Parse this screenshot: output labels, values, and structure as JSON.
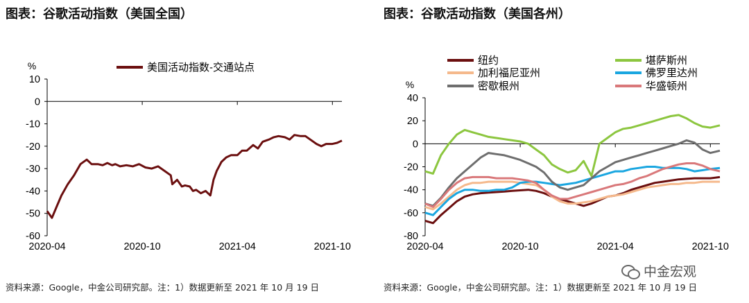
{
  "titles": {
    "left": "图表：谷歌活动指数（美国全国）",
    "right": "图表：谷歌活动指数（美国各州）"
  },
  "source": {
    "left": "资料来源：Google，中金公司研究部。注：1）数据更新至 2021 年 10 月 19 日",
    "right": "资料来源：Google，中金公司研究部。注：1）数据更新至 2021 年 10 月 19 日"
  },
  "watermark": {
    "text": "中金宏观",
    "icon": "wechat-icon"
  },
  "chart_data": [
    {
      "type": "line",
      "title": "",
      "ylabel": "%",
      "xlabel": "",
      "ylim": [
        -60,
        10
      ],
      "yticks": [
        10,
        0,
        -10,
        -20,
        -30,
        -40,
        -50,
        -60
      ],
      "xlim": [
        0,
        18.6
      ],
      "xticks": [
        {
          "pos": 0,
          "label": "2020-04"
        },
        {
          "pos": 6,
          "label": "2020-10"
        },
        {
          "pos": 12,
          "label": "2021-04"
        },
        {
          "pos": 18,
          "label": "2021-10"
        }
      ],
      "legend_position": "top",
      "series": [
        {
          "name": "美国活动指数-交通站点",
          "color": "#6b0f0f",
          "x": [
            0,
            0.3,
            0.6,
            0.9,
            1.3,
            1.7,
            2.1,
            2.5,
            2.8,
            3.2,
            3.5,
            3.8,
            4.1,
            4.3,
            4.6,
            5,
            5.4,
            5.8,
            6.2,
            6.6,
            7,
            7.4,
            7.8,
            7.9,
            8.2,
            8.5,
            8.7,
            9,
            9.2,
            9.4,
            9.7,
            10,
            10.3,
            10.5,
            10.7,
            11,
            11.3,
            11.6,
            12,
            12.3,
            12.6,
            13,
            13.3,
            13.6,
            14,
            14.3,
            14.6,
            15,
            15.3,
            15.6,
            16,
            16.3,
            16.6,
            17,
            17.3,
            17.6,
            18,
            18.3,
            18.6
          ],
          "y": [
            -49,
            -52,
            -47,
            -42,
            -37,
            -33,
            -28,
            -26,
            -28,
            -28,
            -28.5,
            -27.5,
            -28.5,
            -28,
            -29,
            -28.5,
            -29,
            -28,
            -29.5,
            -30,
            -29,
            -31,
            -33,
            -37,
            -35,
            -38,
            -37.5,
            -38,
            -40,
            -39.5,
            -41,
            -40,
            -42,
            -35,
            -31,
            -27,
            -25,
            -24,
            -24,
            -22,
            -22,
            -19.5,
            -21,
            -18,
            -17,
            -16,
            -15.5,
            -16,
            -17,
            -15,
            -15.5,
            -15.5,
            -17,
            -19,
            -20,
            -19,
            -19,
            -18.5,
            -17.5
          ]
        }
      ]
    },
    {
      "type": "line",
      "title": "",
      "ylabel": "%",
      "xlabel": "",
      "ylim": [
        -80,
        40
      ],
      "yticks": [
        40,
        20,
        0,
        -20,
        -40,
        -60,
        -80
      ],
      "xlim": [
        0,
        18.6
      ],
      "xticks": [
        {
          "pos": 0,
          "label": "2020-04"
        },
        {
          "pos": 6,
          "label": "2020-10"
        },
        {
          "pos": 12,
          "label": "2021-04"
        },
        {
          "pos": 18,
          "label": "2021-10"
        }
      ],
      "legend_position": "top",
      "series": [
        {
          "name": "纽约",
          "color": "#6b0f0f",
          "x": [
            0,
            0.5,
            1,
            1.5,
            2,
            2.5,
            3,
            3.5,
            4,
            4.5,
            5,
            5.5,
            6,
            6.5,
            7,
            7.5,
            8,
            8.5,
            9,
            9.5,
            10,
            10.5,
            11,
            11.5,
            12,
            12.5,
            13,
            13.5,
            14,
            14.5,
            15,
            15.5,
            16,
            16.5,
            17,
            17.5,
            18,
            18.6
          ],
          "y": [
            -67,
            -69,
            -62,
            -56,
            -50,
            -46,
            -44,
            -43,
            -42.5,
            -42,
            -41.5,
            -41,
            -40.5,
            -40,
            -41,
            -43,
            -46,
            -48,
            -50,
            -52,
            -54,
            -52,
            -49,
            -46,
            -45,
            -43,
            -40,
            -38,
            -36,
            -34,
            -33,
            -32,
            -31,
            -30.5,
            -30,
            -30,
            -30,
            -29
          ]
        },
        {
          "name": "堪萨斯州",
          "color": "#8cc63f",
          "x": [
            0,
            0.5,
            1,
            1.5,
            2,
            2.5,
            3,
            3.5,
            4,
            4.5,
            5,
            5.5,
            6,
            6.5,
            7,
            7.5,
            8,
            8.5,
            9,
            9.5,
            10,
            10.5,
            11,
            11.5,
            12,
            12.5,
            13,
            13.5,
            14,
            14.5,
            15,
            15.5,
            16,
            16.5,
            17,
            17.5,
            18,
            18.6
          ],
          "y": [
            -24,
            -26,
            -10,
            0,
            8,
            12,
            10,
            8,
            6,
            5,
            4,
            3,
            2,
            0,
            -5,
            -10,
            -18,
            -22,
            -25,
            -23,
            -15,
            -28,
            0,
            5,
            10,
            13,
            14,
            16,
            18,
            20,
            22,
            24,
            25,
            22,
            18,
            15,
            14,
            16
          ]
        },
        {
          "name": "加利福尼亚州",
          "color": "#f5b98c",
          "x": [
            0,
            0.5,
            1,
            1.5,
            2,
            2.5,
            3,
            3.5,
            4,
            4.5,
            5,
            5.5,
            6,
            6.5,
            7,
            7.5,
            8,
            8.5,
            9,
            9.5,
            10,
            10.5,
            11,
            11.5,
            12,
            12.5,
            13,
            13.5,
            14,
            14.5,
            15,
            15.5,
            16,
            16.5,
            17,
            17.5,
            18,
            18.6
          ],
          "y": [
            -55,
            -57,
            -52,
            -46,
            -40,
            -36,
            -34,
            -34,
            -33,
            -33,
            -33,
            -33,
            -34,
            -35,
            -36,
            -40,
            -46,
            -50,
            -52,
            -52,
            -51,
            -50,
            -48,
            -46,
            -45,
            -44,
            -42,
            -40,
            -38,
            -37,
            -36,
            -35,
            -35,
            -34,
            -34,
            -33,
            -33,
            -33
          ]
        },
        {
          "name": "佛罗里达州",
          "color": "#1aa6e0",
          "x": [
            0,
            0.5,
            1,
            1.5,
            2,
            2.5,
            3,
            3.5,
            4,
            4.5,
            5,
            5.5,
            6,
            6.5,
            7,
            7.5,
            8,
            8.5,
            9,
            9.5,
            10,
            10.5,
            11,
            11.5,
            12,
            12.5,
            13,
            13.5,
            14,
            14.5,
            15,
            15.5,
            16,
            16.5,
            17,
            17.5,
            18,
            18.6
          ],
          "y": [
            -60,
            -62,
            -55,
            -48,
            -43,
            -40,
            -40,
            -41,
            -41,
            -40,
            -40,
            -38,
            -34,
            -33,
            -33,
            -34,
            -35,
            -36,
            -35,
            -34,
            -32,
            -30,
            -28,
            -26,
            -24,
            -24,
            -22,
            -21,
            -20,
            -20,
            -21,
            -21,
            -21,
            -22,
            -24,
            -23,
            -22,
            -21
          ]
        },
        {
          "name": "密歇根州",
          "color": "#6e6e6e",
          "x": [
            0,
            0.5,
            1,
            1.5,
            2,
            2.5,
            3,
            3.5,
            4,
            4.5,
            5,
            5.5,
            6,
            6.5,
            7,
            7.5,
            8,
            8.5,
            9,
            9.5,
            10,
            10.5,
            11,
            11.5,
            12,
            12.5,
            13,
            13.5,
            14,
            14.5,
            15,
            15.5,
            16,
            16.5,
            17,
            17.5,
            18,
            18.6
          ],
          "y": [
            -52,
            -54,
            -47,
            -38,
            -30,
            -24,
            -18,
            -12,
            -8,
            -9,
            -10,
            -12,
            -14,
            -17,
            -20,
            -25,
            -33,
            -38,
            -40,
            -38,
            -36,
            -30,
            -24,
            -20,
            -16,
            -14,
            -12,
            -10,
            -8,
            -6,
            -4,
            -2,
            0,
            3,
            1,
            -5,
            -8,
            -6
          ]
        },
        {
          "name": "华盛顿州",
          "color": "#d9787a",
          "x": [
            0,
            0.5,
            1,
            1.5,
            2,
            2.5,
            3,
            3.5,
            4,
            4.5,
            5,
            5.5,
            6,
            6.5,
            7,
            7.5,
            8,
            8.5,
            9,
            9.5,
            10,
            10.5,
            11,
            11.5,
            12,
            12.5,
            13,
            13.5,
            14,
            14.5,
            15,
            15.5,
            16,
            16.5,
            17,
            17.5,
            18,
            18.6
          ],
          "y": [
            -52,
            -55,
            -48,
            -40,
            -34,
            -30,
            -29,
            -29,
            -29,
            -30,
            -30,
            -30,
            -31,
            -32,
            -34,
            -40,
            -45,
            -48,
            -48,
            -46,
            -44,
            -42,
            -40,
            -38,
            -36,
            -35,
            -33,
            -30,
            -28,
            -25,
            -22,
            -20,
            -18,
            -17,
            -17,
            -19,
            -22,
            -24
          ]
        }
      ]
    }
  ]
}
